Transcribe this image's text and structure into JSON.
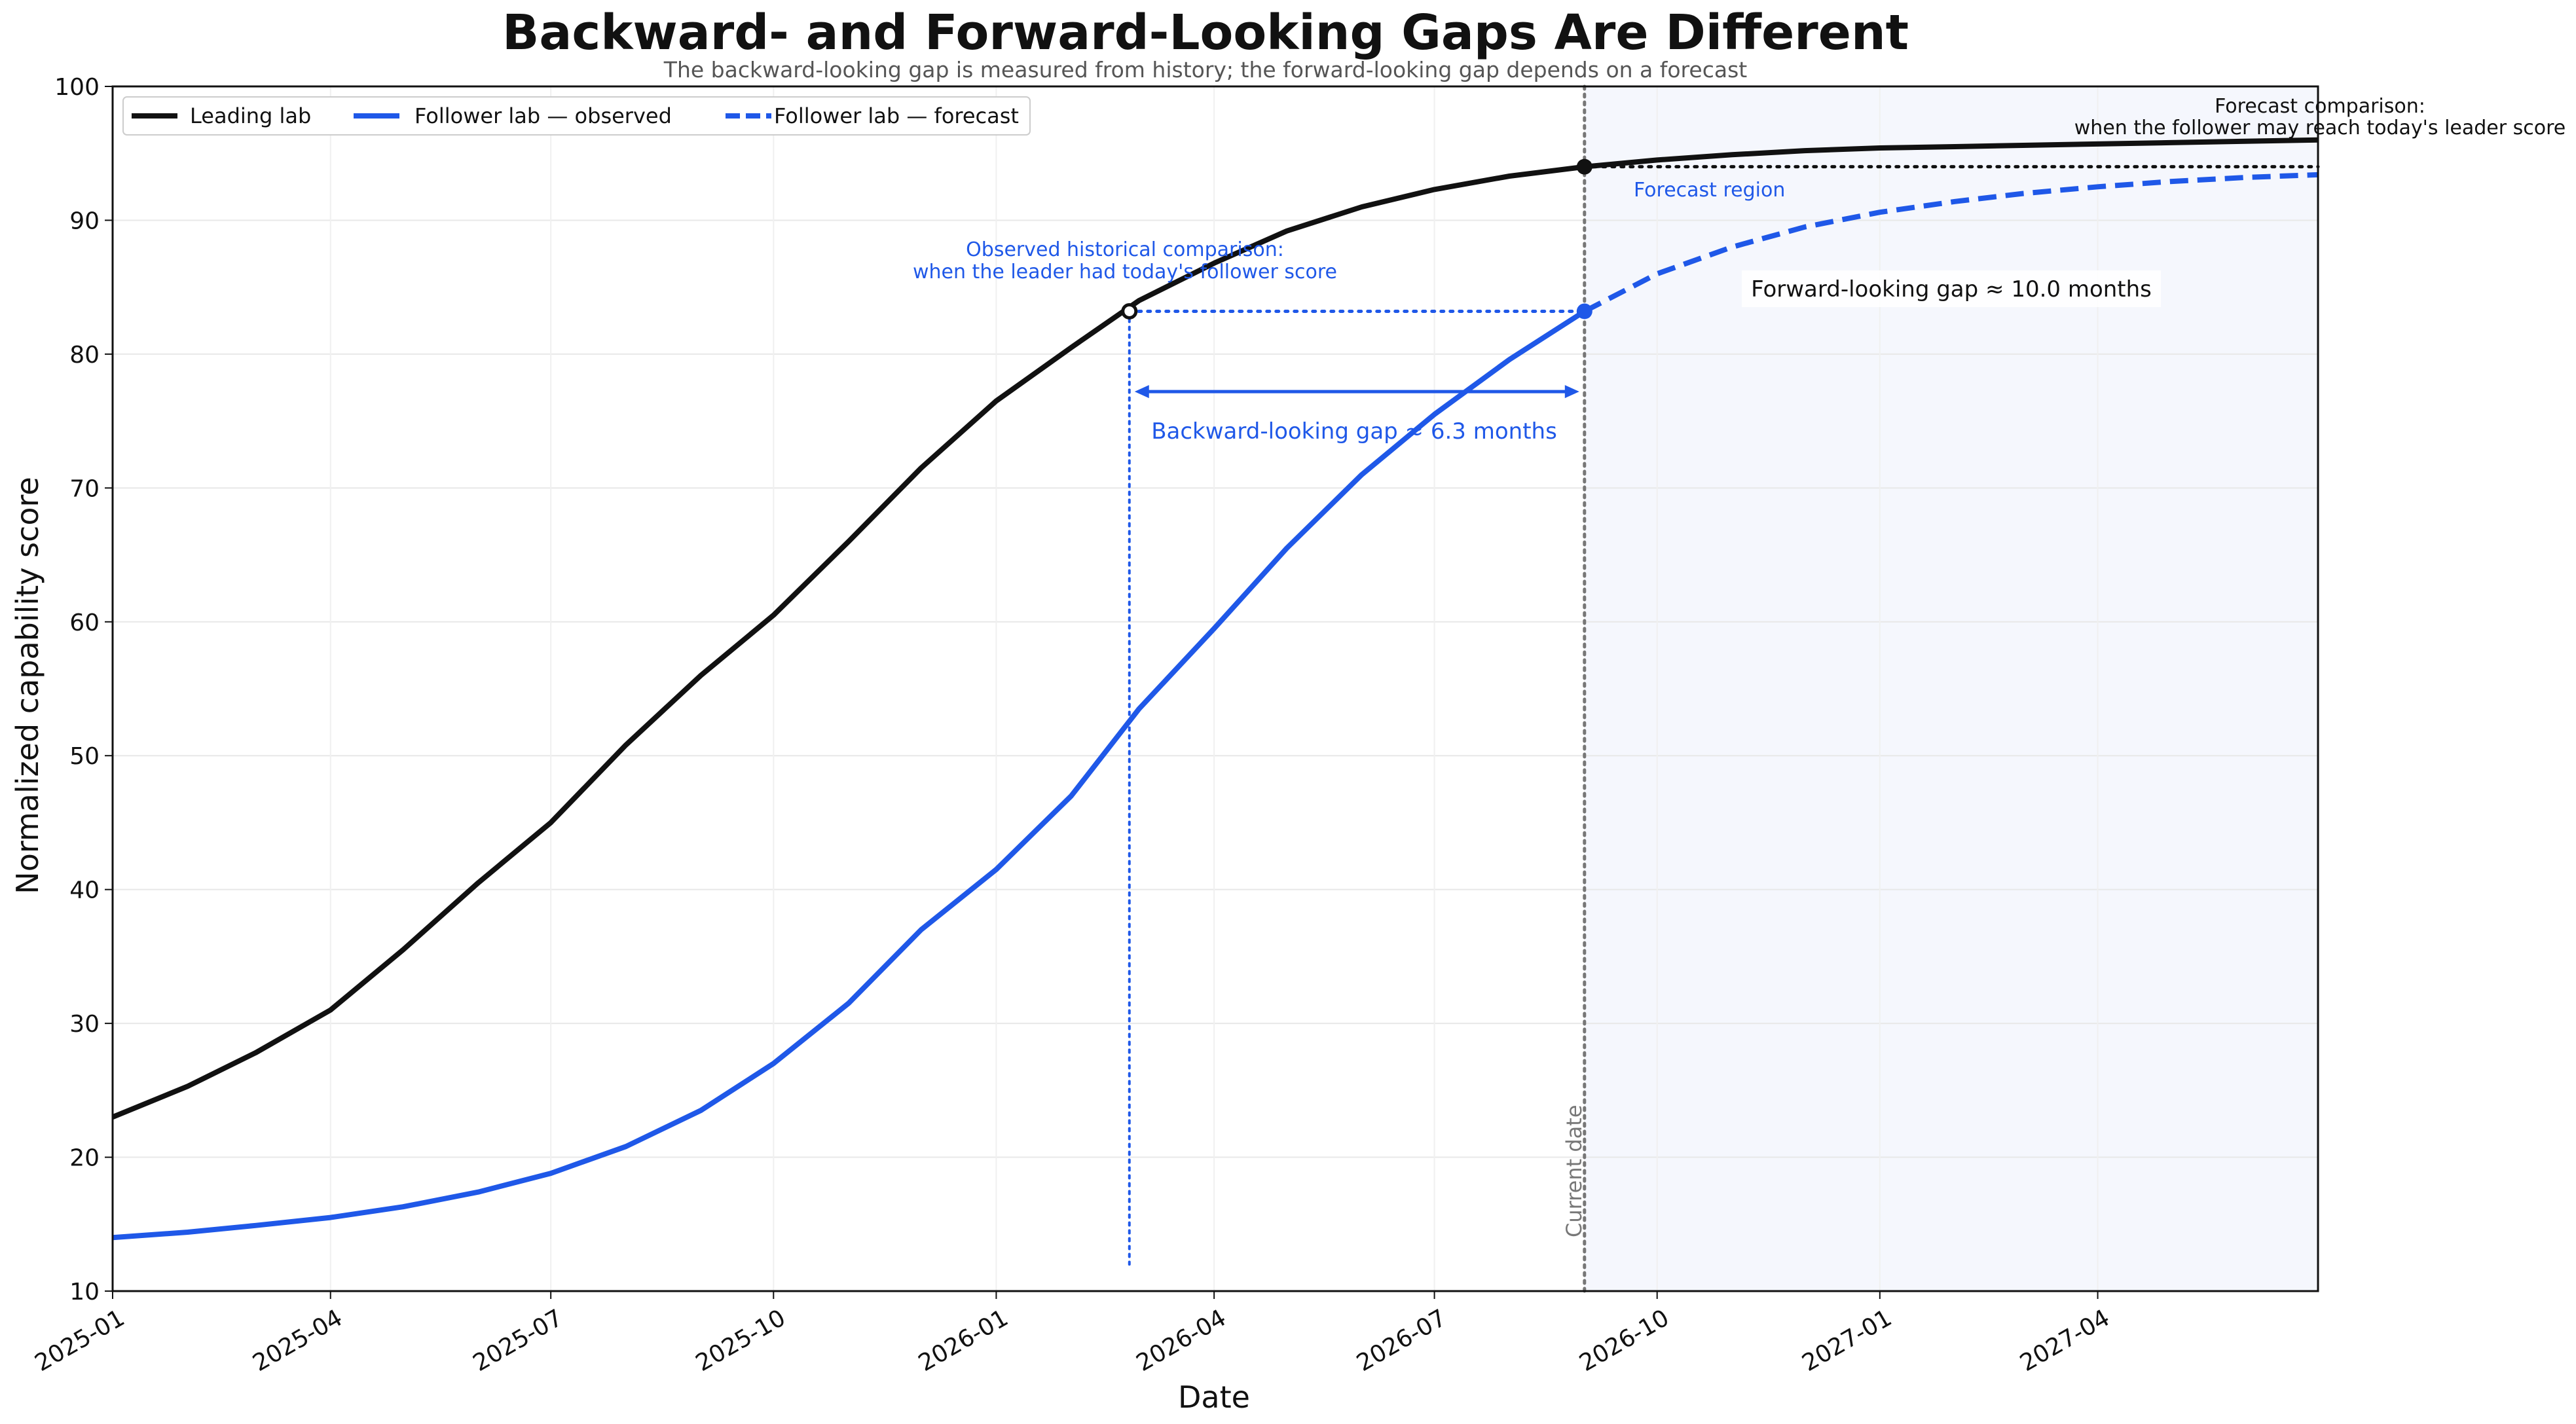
{
  "chart_data": {
    "type": "line",
    "title": "Backward- and Forward-Looking Gaps Are Different",
    "subtitle": "The backward-looking gap is measured from history; the forward-looking gap depends on a forecast",
    "xlabel": "Date",
    "ylabel": "Normalized capability score",
    "xlim": [
      "2025-01-01",
      "2027-07-01"
    ],
    "ylim": [
      10,
      100
    ],
    "x_ticks": [
      "2025-01",
      "2025-04",
      "2025-07",
      "2025-10",
      "2026-01",
      "2026-04",
      "2026-07",
      "2026-10",
      "2027-01",
      "2027-04"
    ],
    "y_ticks": [
      10,
      20,
      30,
      40,
      50,
      60,
      70,
      80,
      90,
      100
    ],
    "grid": true,
    "legend_position": "top-left",
    "current_date": "2026-09-01",
    "series": [
      {
        "name": "Leading lab",
        "color": "#111111",
        "style": "solid",
        "points": [
          [
            "2025-01-01",
            23.0
          ],
          [
            "2025-02-01",
            25.3
          ],
          [
            "2025-03-01",
            27.8
          ],
          [
            "2025-04-01",
            31.0
          ],
          [
            "2025-05-01",
            35.5
          ],
          [
            "2025-06-01",
            40.5
          ],
          [
            "2025-07-01",
            45.0
          ],
          [
            "2025-08-01",
            50.8
          ],
          [
            "2025-09-01",
            56.0
          ],
          [
            "2025-10-01",
            60.5
          ],
          [
            "2025-11-01",
            66.0
          ],
          [
            "2025-12-01",
            71.5
          ],
          [
            "2026-01-01",
            76.5
          ],
          [
            "2026-02-01",
            80.5
          ],
          [
            "2026-03-01",
            84.0
          ],
          [
            "2026-04-01",
            86.8
          ],
          [
            "2026-05-01",
            89.2
          ],
          [
            "2026-06-01",
            91.0
          ],
          [
            "2026-07-01",
            92.3
          ],
          [
            "2026-08-01",
            93.3
          ],
          [
            "2026-09-01",
            94.0
          ],
          [
            "2026-10-01",
            94.5
          ],
          [
            "2026-11-01",
            94.9
          ],
          [
            "2026-12-01",
            95.2
          ],
          [
            "2027-01-01",
            95.4
          ],
          [
            "2027-02-01",
            95.5
          ],
          [
            "2027-03-01",
            95.6
          ],
          [
            "2027-04-01",
            95.7
          ],
          [
            "2027-05-01",
            95.8
          ],
          [
            "2027-06-01",
            95.9
          ],
          [
            "2027-07-01",
            96.0
          ]
        ]
      },
      {
        "name": "Follower lab — observed",
        "color": "#1f58e8",
        "style": "solid",
        "points": [
          [
            "2025-01-01",
            14.0
          ],
          [
            "2025-02-01",
            14.4
          ],
          [
            "2025-03-01",
            14.9
          ],
          [
            "2025-04-01",
            15.5
          ],
          [
            "2025-05-01",
            16.3
          ],
          [
            "2025-06-01",
            17.4
          ],
          [
            "2025-07-01",
            18.8
          ],
          [
            "2025-08-01",
            20.8
          ],
          [
            "2025-09-01",
            23.5
          ],
          [
            "2025-10-01",
            27.0
          ],
          [
            "2025-11-01",
            31.5
          ],
          [
            "2025-12-01",
            37.0
          ],
          [
            "2026-01-01",
            41.5
          ],
          [
            "2026-02-01",
            47.0
          ],
          [
            "2026-03-01",
            53.5
          ],
          [
            "2026-04-01",
            59.5
          ],
          [
            "2026-05-01",
            65.5
          ],
          [
            "2026-06-01",
            71.0
          ],
          [
            "2026-07-01",
            75.5
          ],
          [
            "2026-08-01",
            79.6
          ],
          [
            "2026-09-01",
            83.2
          ]
        ]
      },
      {
        "name": "Follower lab — forecast",
        "color": "#1f58e8",
        "style": "dashed",
        "points": [
          [
            "2026-09-01",
            83.2
          ],
          [
            "2026-10-01",
            86.0
          ],
          [
            "2026-11-01",
            88.0
          ],
          [
            "2026-12-01",
            89.5
          ],
          [
            "2027-01-01",
            90.6
          ],
          [
            "2027-02-01",
            91.4
          ],
          [
            "2027-03-01",
            92.0
          ],
          [
            "2027-04-01",
            92.5
          ],
          [
            "2027-05-01",
            92.9
          ],
          [
            "2027-06-01",
            93.2
          ],
          [
            "2027-07-01",
            93.4
          ]
        ]
      }
    ],
    "annotations": {
      "forecast_region_label": "Forecast region",
      "current_date_label": "Current date",
      "historical_line1": "Observed historical comparison:",
      "historical_line2": "when the leader had today's follower score",
      "forecast_line1": "Forecast comparison:",
      "forecast_line2": "when the follower may reach today's leader score",
      "backward_gap_label": "Backward-looking gap ≈ 6.3 months",
      "forward_gap_label": "Forward-looking gap ≈ 10.0 months",
      "backward_gap_months": 6.3,
      "forward_gap_months": 10.0,
      "historical_point": [
        "2026-02-25",
        83.2
      ],
      "current_leader_point": [
        "2026-09-01",
        94.0
      ],
      "current_follower_point": [
        "2026-09-01",
        83.2
      ]
    },
    "colors": {
      "leader": "#111111",
      "follower": "#1f58e8",
      "forecast_region": "#f5f7fd",
      "current_line": "#777777"
    }
  }
}
